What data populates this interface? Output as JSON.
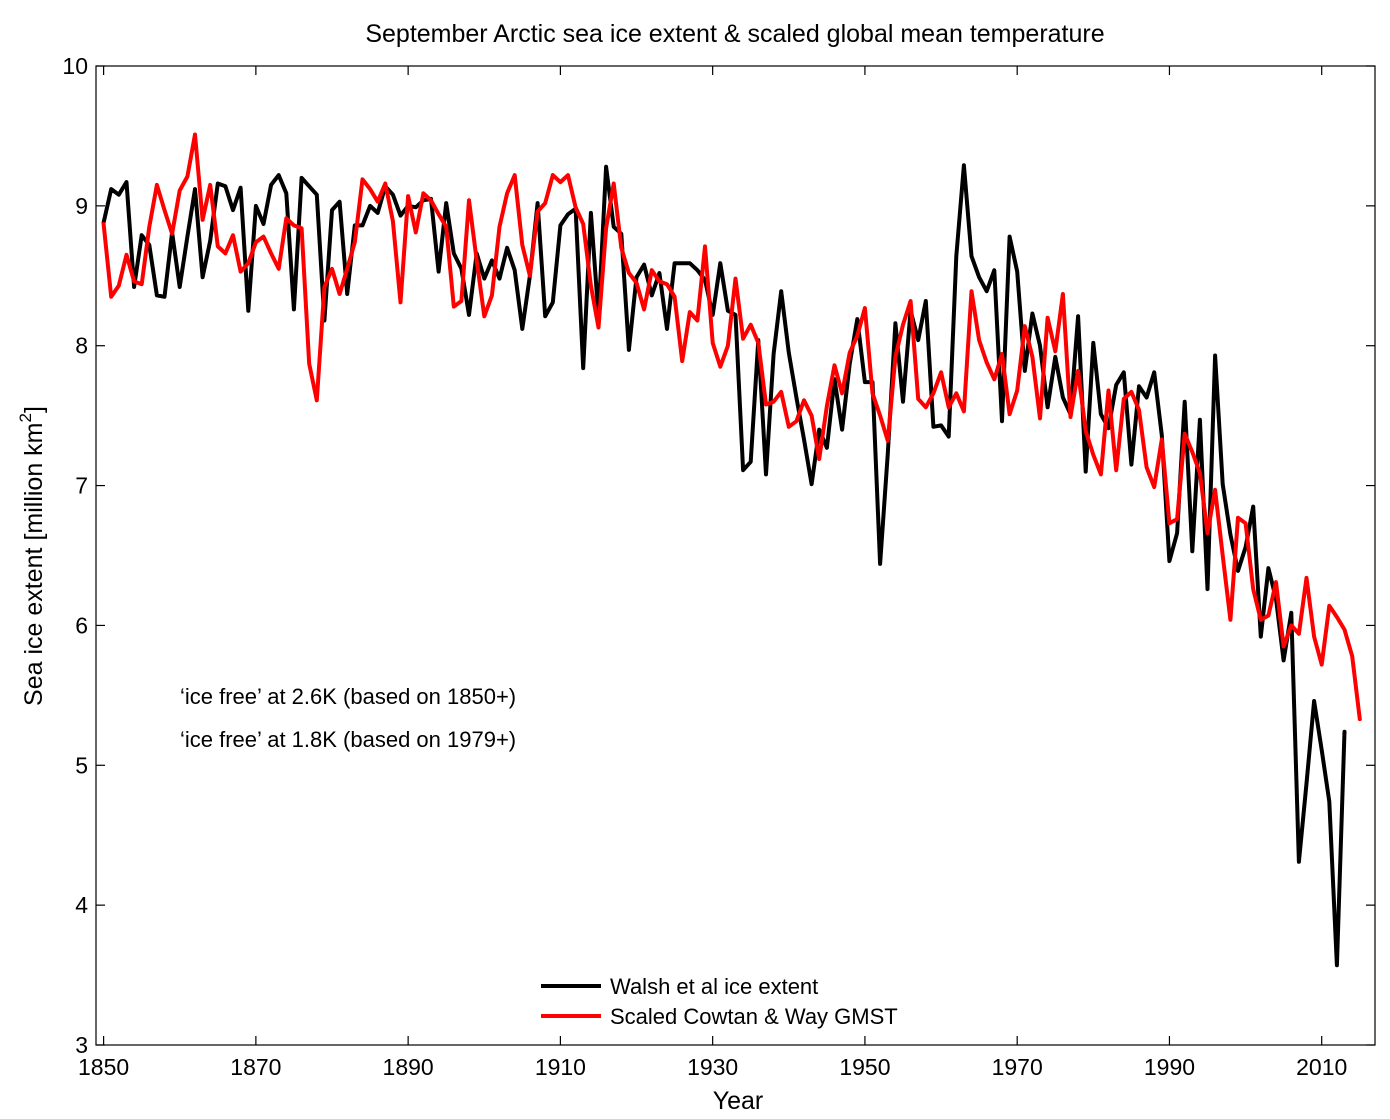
{
  "chart_data": {
    "type": "line",
    "title": "September Arctic sea ice extent & scaled global mean temperature",
    "xlabel": "Year",
    "ylabel_prefix": "Sea ice extent [million km",
    "ylabel_sup": "2",
    "ylabel_suffix": "]",
    "xlim": [
      1849,
      2017
    ],
    "ylim": [
      3,
      10
    ],
    "xticks": [
      1850,
      1870,
      1890,
      1910,
      1930,
      1950,
      1970,
      1990,
      2010
    ],
    "yticks": [
      3,
      4,
      5,
      6,
      7,
      8,
      9,
      10
    ],
    "annotations": [
      "‘ice free’ at 2.6K  (based on 1850+)",
      "‘ice free’ at 1.8K  (based on 1979+)"
    ],
    "legend": [
      "Walsh et al ice extent",
      "Scaled Cowtan & Way GMST"
    ],
    "series": [
      {
        "name": "Walsh et al ice extent",
        "color": "#000000",
        "x_start": 1850,
        "values": [
          8.88,
          9.12,
          9.08,
          9.17,
          8.42,
          8.79,
          8.72,
          8.36,
          8.35,
          8.81,
          8.42,
          8.78,
          9.12,
          8.49,
          8.75,
          9.16,
          9.14,
          8.97,
          9.13,
          8.25,
          9.0,
          8.87,
          9.15,
          9.22,
          9.09,
          8.26,
          9.2,
          9.14,
          9.08,
          8.18,
          8.97,
          9.03,
          8.37,
          8.86,
          8.86,
          9.0,
          8.95,
          9.14,
          9.08,
          8.93,
          9.0,
          8.99,
          9.04,
          9.05,
          8.53,
          9.02,
          8.66,
          8.55,
          8.22,
          8.66,
          8.48,
          8.61,
          8.48,
          8.7,
          8.54,
          8.12,
          8.5,
          9.02,
          8.21,
          8.31,
          8.86,
          8.94,
          8.98,
          7.84,
          8.95,
          8.21,
          9.28,
          8.85,
          8.8,
          7.97,
          8.49,
          8.58,
          8.36,
          8.52,
          8.12,
          8.59,
          8.59,
          8.59,
          8.54,
          8.47,
          8.22,
          8.59,
          8.25,
          8.22,
          7.11,
          7.17,
          8.04,
          7.08,
          7.94,
          8.39,
          7.95,
          7.63,
          7.33,
          7.01,
          7.4,
          7.27,
          7.76,
          7.4,
          7.87,
          8.19,
          7.74,
          7.74,
          6.44,
          7.23,
          8.16,
          7.6,
          8.25,
          8.04,
          8.32,
          7.42,
          7.43,
          7.35,
          8.64,
          9.29,
          8.64,
          8.49,
          8.39,
          8.54,
          7.46,
          8.78,
          8.53,
          7.82,
          8.23,
          8.0,
          7.56,
          7.92,
          7.63,
          7.51,
          8.21,
          7.1,
          8.02,
          7.51,
          7.41,
          7.72,
          7.81,
          7.15,
          7.71,
          7.63,
          7.81,
          7.36,
          6.46,
          6.66,
          7.6,
          6.53,
          7.47,
          6.26,
          7.93,
          7.01,
          6.65,
          6.39,
          6.56,
          6.85,
          5.92,
          6.41,
          6.19,
          5.75,
          6.09,
          4.31,
          4.87,
          5.46,
          5.11,
          4.74,
          3.57,
          5.24
        ]
      },
      {
        "name": "Scaled Cowtan & Way GMST",
        "color": "#ff0000",
        "x_start": 1850,
        "values": [
          8.87,
          8.35,
          8.43,
          8.65,
          8.46,
          8.44,
          8.85,
          9.15,
          8.97,
          8.8,
          9.11,
          9.21,
          9.51,
          8.9,
          9.15,
          8.71,
          8.66,
          8.79,
          8.53,
          8.59,
          8.74,
          8.78,
          8.66,
          8.55,
          8.91,
          8.86,
          8.84,
          7.87,
          7.61,
          8.42,
          8.55,
          8.37,
          8.55,
          8.74,
          9.19,
          9.12,
          9.03,
          9.16,
          8.89,
          8.31,
          9.07,
          8.81,
          9.09,
          9.04,
          8.94,
          8.85,
          8.28,
          8.32,
          9.04,
          8.61,
          8.21,
          8.36,
          8.85,
          9.09,
          9.22,
          8.72,
          8.5,
          8.96,
          9.02,
          9.22,
          9.17,
          9.22,
          8.99,
          8.87,
          8.43,
          8.13,
          8.84,
          9.16,
          8.7,
          8.52,
          8.45,
          8.26,
          8.54,
          8.46,
          8.44,
          8.35,
          7.89,
          8.24,
          8.18,
          8.71,
          8.02,
          7.85,
          8.0,
          8.48,
          8.05,
          8.15,
          8.02,
          7.58,
          7.6,
          7.67,
          7.42,
          7.46,
          7.61,
          7.5,
          7.19,
          7.57,
          7.86,
          7.66,
          7.95,
          8.07,
          8.27,
          7.66,
          7.5,
          7.32,
          7.92,
          8.15,
          8.32,
          7.62,
          7.56,
          7.66,
          7.81,
          7.56,
          7.66,
          7.53,
          8.39,
          8.04,
          7.88,
          7.76,
          7.94,
          7.51,
          7.68,
          8.14,
          7.92,
          7.48,
          8.2,
          7.96,
          8.37,
          7.49,
          7.82,
          7.39,
          7.22,
          7.08,
          7.68,
          7.11,
          7.62,
          7.67,
          7.54,
          7.13,
          6.99,
          7.33,
          6.73,
          6.76,
          7.37,
          7.24,
          7.09,
          6.66,
          6.97,
          6.5,
          6.04,
          6.77,
          6.73,
          6.26,
          6.04,
          6.07,
          6.31,
          5.85,
          6.0,
          5.94,
          6.34,
          5.92,
          5.72,
          6.14,
          6.06,
          5.97,
          5.78,
          5.33
        ]
      }
    ]
  }
}
